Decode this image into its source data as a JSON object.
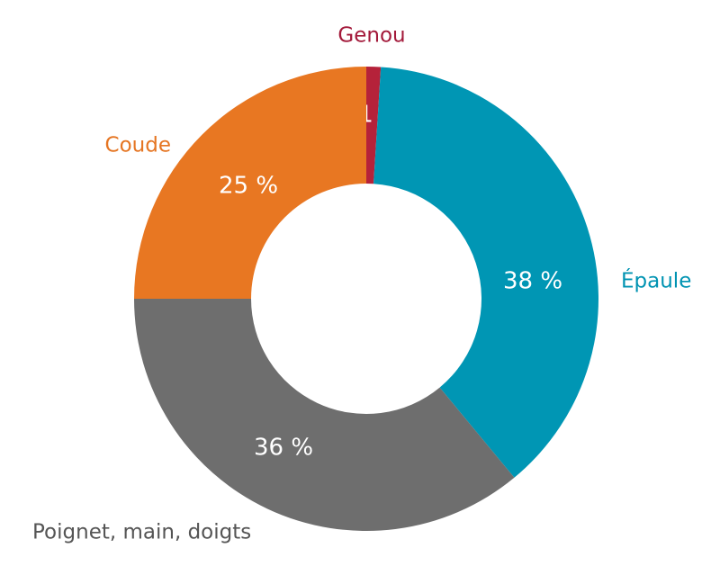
{
  "chart_data": {
    "type": "donut",
    "categories": [
      "Genou",
      "Épaule",
      "Poignet, main, doigts",
      "Coude"
    ],
    "values": [
      1,
      38,
      36,
      25
    ],
    "value_labels": [
      "1 %",
      "38 %",
      "36 %",
      "25 %"
    ],
    "colors": [
      "#b5223a",
      "#0096b4",
      "#6e6e6e",
      "#e87722"
    ],
    "label_colors": [
      "#a3193a",
      "#0093b2",
      "#555555",
      "#e57522"
    ]
  }
}
